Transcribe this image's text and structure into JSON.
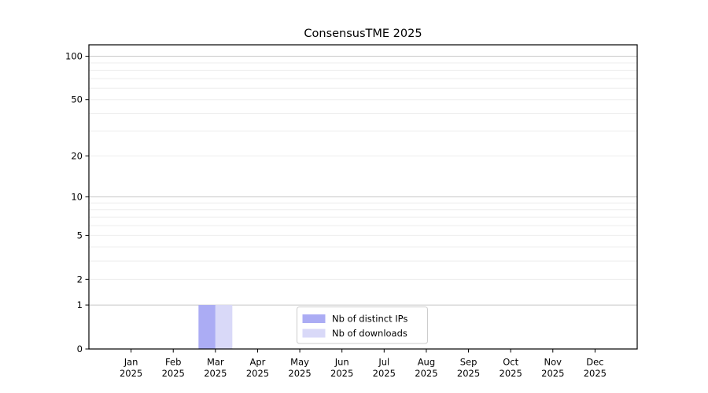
{
  "chart_data": {
    "type": "bar",
    "title": "ConsensusTME 2025",
    "categories": [
      "Jan",
      "Feb",
      "Mar",
      "Apr",
      "May",
      "Jun",
      "Jul",
      "Aug",
      "Sep",
      "Oct",
      "Nov",
      "Dec"
    ],
    "xtick_line2": "2025",
    "series": [
      {
        "name": "Nb of distinct IPs",
        "color": "#abacf4",
        "values": [
          0,
          0,
          1,
          0,
          0,
          0,
          0,
          0,
          0,
          0,
          0,
          0
        ]
      },
      {
        "name": "Nb of downloads",
        "color": "#d9d9f8",
        "values": [
          0,
          0,
          1,
          0,
          0,
          0,
          0,
          0,
          0,
          0,
          0,
          0
        ]
      }
    ],
    "yscale": "log10(1+v)",
    "ylim": [
      0,
      120
    ],
    "ytick_values": [
      0,
      1,
      2,
      5,
      10,
      20,
      50,
      100
    ],
    "major_grid_values": [
      1,
      10,
      100
    ],
    "minor_grid_values": [
      2,
      3,
      4,
      5,
      6,
      7,
      8,
      9,
      20,
      30,
      40,
      50,
      60,
      70,
      80,
      90
    ],
    "grid": true,
    "legend_position": "lower-center-inside",
    "colors": {
      "axis": "#000000",
      "major_grid": "#c6c6c6",
      "minor_grid": "#ededed",
      "legend_border": "#cccccc",
      "legend_background": "#ffffff",
      "text": "#000000",
      "background": "#ffffff"
    }
  }
}
